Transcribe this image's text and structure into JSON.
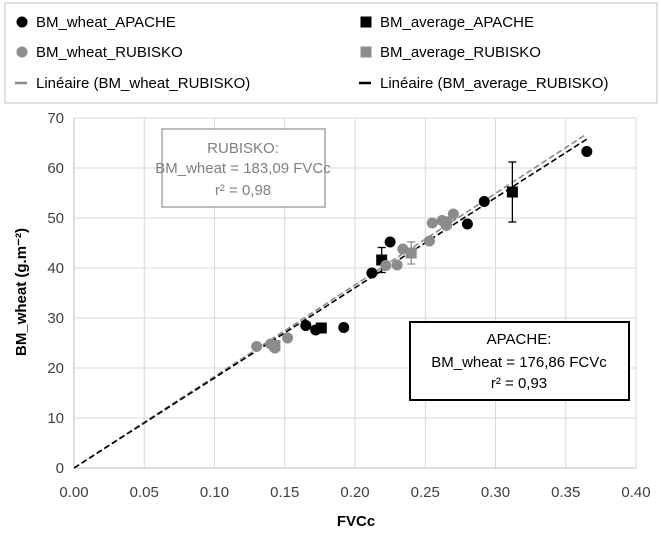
{
  "chart_data": {
    "type": "scatter",
    "xlabel": "FVCc",
    "ylabel": "BM_wheat (g.m⁻²)",
    "xlim": [
      0,
      0.4
    ],
    "ylim": [
      0,
      70
    ],
    "x_ticks": [
      "0.00",
      "0.05",
      "0.10",
      "0.15",
      "0.20",
      "0.25",
      "0.30",
      "0.35",
      "0.40"
    ],
    "y_ticks": [
      "0",
      "10",
      "20",
      "30",
      "40",
      "50",
      "60",
      "70"
    ],
    "grid": true,
    "legend_position": "top",
    "legend": [
      {
        "label": "BM_wheat_APACHE",
        "marker": "circle",
        "color": "#000000"
      },
      {
        "label": "BM_average_APACHE",
        "marker": "square",
        "color": "#000000"
      },
      {
        "label": "BM_wheat_RUBISKO",
        "marker": "circle",
        "color": "#8c8c8c"
      },
      {
        "label": "BM_average_RUBISKO",
        "marker": "square",
        "color": "#8c8c8c"
      },
      {
        "label": "Linéaire (BM_wheat_RUBISKO)",
        "marker": "dash",
        "color": "#8c8c8c"
      },
      {
        "label": "Linéaire (BM_average_RUBISKO)",
        "marker": "dash",
        "color": "#000000"
      }
    ],
    "series": [
      {
        "name": "BM_wheat_APACHE",
        "marker": "circle",
        "color": "#000000",
        "points": [
          {
            "x": 0.165,
            "y": 28.5
          },
          {
            "x": 0.172,
            "y": 27.6
          },
          {
            "x": 0.192,
            "y": 28.1
          },
          {
            "x": 0.212,
            "y": 39.0
          },
          {
            "x": 0.225,
            "y": 45.2
          },
          {
            "x": 0.28,
            "y": 48.8
          },
          {
            "x": 0.292,
            "y": 53.3
          },
          {
            "x": 0.365,
            "y": 63.3
          }
        ]
      },
      {
        "name": "BM_average_APACHE",
        "marker": "square",
        "color": "#000000",
        "points": [
          {
            "x": 0.176,
            "y": 28.0,
            "err": 0.5
          },
          {
            "x": 0.219,
            "y": 41.6,
            "err": 2.5
          },
          {
            "x": 0.312,
            "y": 55.2,
            "err": 6.0
          }
        ]
      },
      {
        "name": "BM_wheat_RUBISKO",
        "marker": "circle",
        "color": "#8c8c8c",
        "points": [
          {
            "x": 0.13,
            "y": 24.3
          },
          {
            "x": 0.14,
            "y": 24.8
          },
          {
            "x": 0.143,
            "y": 24.0
          },
          {
            "x": 0.152,
            "y": 26.0
          },
          {
            "x": 0.222,
            "y": 40.5
          },
          {
            "x": 0.23,
            "y": 40.6
          },
          {
            "x": 0.234,
            "y": 43.8
          },
          {
            "x": 0.253,
            "y": 45.4
          },
          {
            "x": 0.255,
            "y": 49.0
          },
          {
            "x": 0.262,
            "y": 49.5
          },
          {
            "x": 0.265,
            "y": 48.5
          },
          {
            "x": 0.27,
            "y": 50.8
          }
        ]
      },
      {
        "name": "BM_average_RUBISKO",
        "marker": "square",
        "color": "#8c8c8c",
        "points": [
          {
            "x": 0.143,
            "y": 24.5,
            "err": 0.5
          },
          {
            "x": 0.24,
            "y": 43.0,
            "err": 2.2
          },
          {
            "x": 0.265,
            "y": 49.0,
            "err": 1.2
          }
        ]
      }
    ],
    "trendlines": [
      {
        "name": "Linéaire (BM_wheat_RUBISKO)",
        "slope": 183.09,
        "color": "#8c8c8c",
        "x_range": [
          0,
          0.365
        ]
      },
      {
        "name": "Linéaire (BM_average_RUBISKO)",
        "slope": 180.2,
        "color": "#000000",
        "x_range": [
          0,
          0.365
        ]
      }
    ],
    "annotations": [
      {
        "id": "rubisko",
        "lines": [
          "RUBISKO:",
          "BM_wheat = 183,09 FVCc",
          "r² = 0,98"
        ],
        "color": "#808080"
      },
      {
        "id": "apache",
        "lines": [
          "APACHE:",
          "BM_wheat = 176,86 FCVc",
          "r² = 0,93"
        ],
        "color": "#000000"
      }
    ]
  }
}
